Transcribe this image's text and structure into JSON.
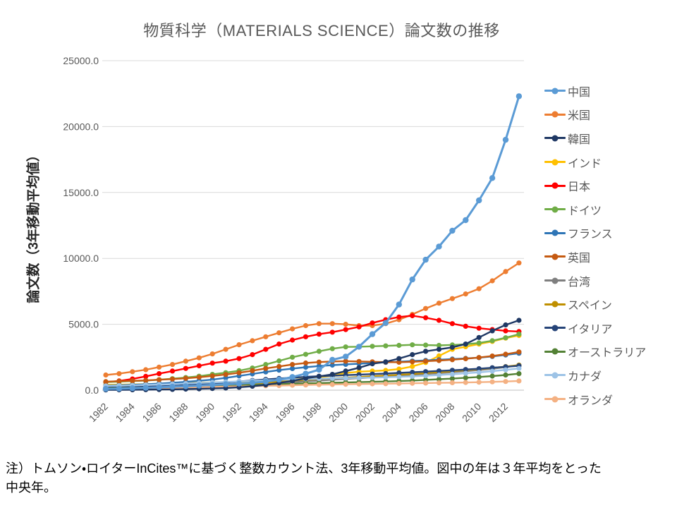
{
  "title": "物質科学（MATERIALS SCIENCE）論文数の推移",
  "note": {
    "line1": "注）トムソン・ロイターInCites™に基づく整数カウント法、3年移動平均値。図中の年は３年平均をとった",
    "line2": "中央年。"
  },
  "chart_data": {
    "type": "line",
    "title": "物質科学（MATERIALS SCIENCE）論文数の推移",
    "xlabel": "",
    "ylabel": "論文数（3年移動平均値）",
    "ylim": [
      0,
      25000
    ],
    "grid": true,
    "legend_position": "right",
    "marker": "circle",
    "ytick_labels": [
      "0.0",
      "5000.0",
      "10000.0",
      "15000.0",
      "20000.0",
      "25000.0"
    ],
    "xtick_labels": [
      "1982",
      "1984",
      "1986",
      "1988",
      "1990",
      "1992",
      "1994",
      "1996",
      "1998",
      "2000",
      "2002",
      "2004",
      "2006",
      "2008",
      "2010",
      "2012"
    ],
    "x": [
      1982,
      1983,
      1984,
      1985,
      1986,
      1987,
      1988,
      1989,
      1990,
      1991,
      1992,
      1993,
      1994,
      1995,
      1996,
      1997,
      1998,
      1999,
      2000,
      2001,
      2002,
      2003,
      2004,
      2005,
      2006,
      2007,
      2008,
      2009,
      2010,
      2011,
      2012,
      2013
    ],
    "series": [
      {
        "key": "china",
        "name": "中国",
        "color": "#5B9BD5",
        "values": [
          100,
          120,
          150,
          180,
          220,
          260,
          300,
          350,
          400,
          450,
          500,
          560,
          650,
          800,
          1000,
          1250,
          1550,
          2300,
          2550,
          3300,
          4250,
          5100,
          6500,
          8400,
          9900,
          10900,
          12100,
          12900,
          14400,
          16100,
          19000,
          22300
        ]
      },
      {
        "key": "usa",
        "name": "米国",
        "color": "#ED7D31",
        "values": [
          1150,
          1250,
          1400,
          1550,
          1750,
          1950,
          2200,
          2450,
          2750,
          3100,
          3450,
          3750,
          4050,
          4350,
          4650,
          4900,
          5050,
          5050,
          5000,
          4900,
          4900,
          5050,
          5350,
          5750,
          6200,
          6600,
          6950,
          7300,
          7700,
          8300,
          9000,
          9650
        ]
      },
      {
        "key": "korea",
        "name": "韓国",
        "color": "#1F3864",
        "values": [
          20,
          25,
          30,
          40,
          50,
          60,
          80,
          100,
          130,
          160,
          220,
          300,
          400,
          550,
          700,
          900,
          1050,
          1200,
          1450,
          1700,
          2000,
          2150,
          2400,
          2700,
          2950,
          3100,
          3250,
          3500,
          4000,
          4500,
          4950,
          5300
        ]
      },
      {
        "key": "india",
        "name": "インド",
        "color": "#FFC000",
        "values": [
          400,
          420,
          440,
          460,
          490,
          510,
          540,
          560,
          590,
          610,
          640,
          680,
          720,
          770,
          830,
          900,
          980,
          1100,
          1300,
          1400,
          1450,
          1500,
          1600,
          1800,
          2100,
          2600,
          3100,
          3300,
          3500,
          3700,
          3950,
          4150
        ]
      },
      {
        "key": "japan",
        "name": "日本",
        "color": "#FF0000",
        "values": [
          600,
          700,
          850,
          1050,
          1250,
          1450,
          1650,
          1850,
          2050,
          2200,
          2400,
          2700,
          3100,
          3500,
          3800,
          4050,
          4250,
          4400,
          4600,
          4800,
          5100,
          5350,
          5550,
          5650,
          5500,
          5300,
          5050,
          4850,
          4700,
          4600,
          4500,
          4450
        ]
      },
      {
        "key": "germany",
        "name": "ドイツ",
        "color": "#70AD47",
        "values": [
          620,
          650,
          690,
          730,
          790,
          870,
          960,
          1060,
          1200,
          1330,
          1480,
          1680,
          1950,
          2220,
          2500,
          2720,
          2950,
          3150,
          3280,
          3300,
          3330,
          3360,
          3400,
          3440,
          3420,
          3400,
          3430,
          3480,
          3580,
          3750,
          3980,
          4250
        ]
      },
      {
        "key": "france",
        "name": "フランス",
        "color": "#2E75B6",
        "values": [
          350,
          380,
          410,
          450,
          500,
          560,
          630,
          710,
          800,
          930,
          1080,
          1230,
          1380,
          1520,
          1640,
          1740,
          1830,
          1900,
          1960,
          2010,
          2060,
          2110,
          2160,
          2210,
          2260,
          2310,
          2360,
          2410,
          2470,
          2560,
          2670,
          2800
        ]
      },
      {
        "key": "uk",
        "name": "英国",
        "color": "#C55A11",
        "values": [
          650,
          680,
          710,
          740,
          790,
          840,
          900,
          980,
          1080,
          1190,
          1320,
          1480,
          1650,
          1800,
          1950,
          2060,
          2130,
          2180,
          2200,
          2180,
          2150,
          2130,
          2120,
          2150,
          2200,
          2250,
          2310,
          2390,
          2480,
          2590,
          2730,
          2900
        ]
      },
      {
        "key": "taiwan",
        "name": "台湾",
        "color": "#7F7F7F",
        "values": [
          30,
          35,
          45,
          60,
          80,
          100,
          130,
          170,
          210,
          260,
          320,
          390,
          460,
          530,
          600,
          670,
          730,
          790,
          850,
          910,
          970,
          1030,
          1090,
          1150,
          1220,
          1290,
          1360,
          1440,
          1520,
          1620,
          1750,
          1900
        ]
      },
      {
        "key": "spain",
        "name": "スペイン",
        "color": "#BF8F00",
        "values": [
          50,
          60,
          75,
          95,
          120,
          150,
          190,
          240,
          300,
          360,
          430,
          500,
          580,
          650,
          720,
          790,
          850,
          900,
          950,
          1000,
          1060,
          1110,
          1170,
          1230,
          1300,
          1370,
          1440,
          1520,
          1600,
          1690,
          1790,
          1900
        ]
      },
      {
        "key": "italy",
        "name": "イタリア",
        "color": "#264478",
        "values": [
          200,
          215,
          235,
          260,
          290,
          330,
          380,
          440,
          510,
          580,
          660,
          740,
          820,
          890,
          950,
          1010,
          1060,
          1100,
          1140,
          1180,
          1220,
          1260,
          1310,
          1360,
          1410,
          1460,
          1510,
          1570,
          1630,
          1700,
          1770,
          1850
        ]
      },
      {
        "key": "australia",
        "name": "オーストラリア",
        "color": "#538135",
        "values": [
          150,
          160,
          175,
          190,
          210,
          230,
          255,
          280,
          305,
          330,
          360,
          390,
          420,
          450,
          480,
          510,
          535,
          560,
          585,
          610,
          635,
          660,
          690,
          730,
          780,
          830,
          880,
          940,
          1000,
          1070,
          1150,
          1250
        ]
      },
      {
        "key": "canada",
        "name": "カナダ",
        "color": "#9DC3E6",
        "values": [
          320,
          340,
          365,
          395,
          430,
          465,
          505,
          545,
          585,
          625,
          665,
          705,
          745,
          780,
          815,
          845,
          870,
          895,
          915,
          935,
          955,
          980,
          1010,
          1050,
          1100,
          1150,
          1210,
          1280,
          1350,
          1440,
          1540,
          1650
        ]
      },
      {
        "key": "netherlands",
        "name": "オランダ",
        "color": "#F4B183",
        "values": [
          120,
          130,
          140,
          155,
          170,
          185,
          205,
          225,
          245,
          265,
          285,
          305,
          330,
          350,
          375,
          395,
          415,
          435,
          450,
          465,
          480,
          495,
          510,
          525,
          540,
          555,
          570,
          585,
          605,
          630,
          660,
          700
        ]
      }
    ]
  }
}
